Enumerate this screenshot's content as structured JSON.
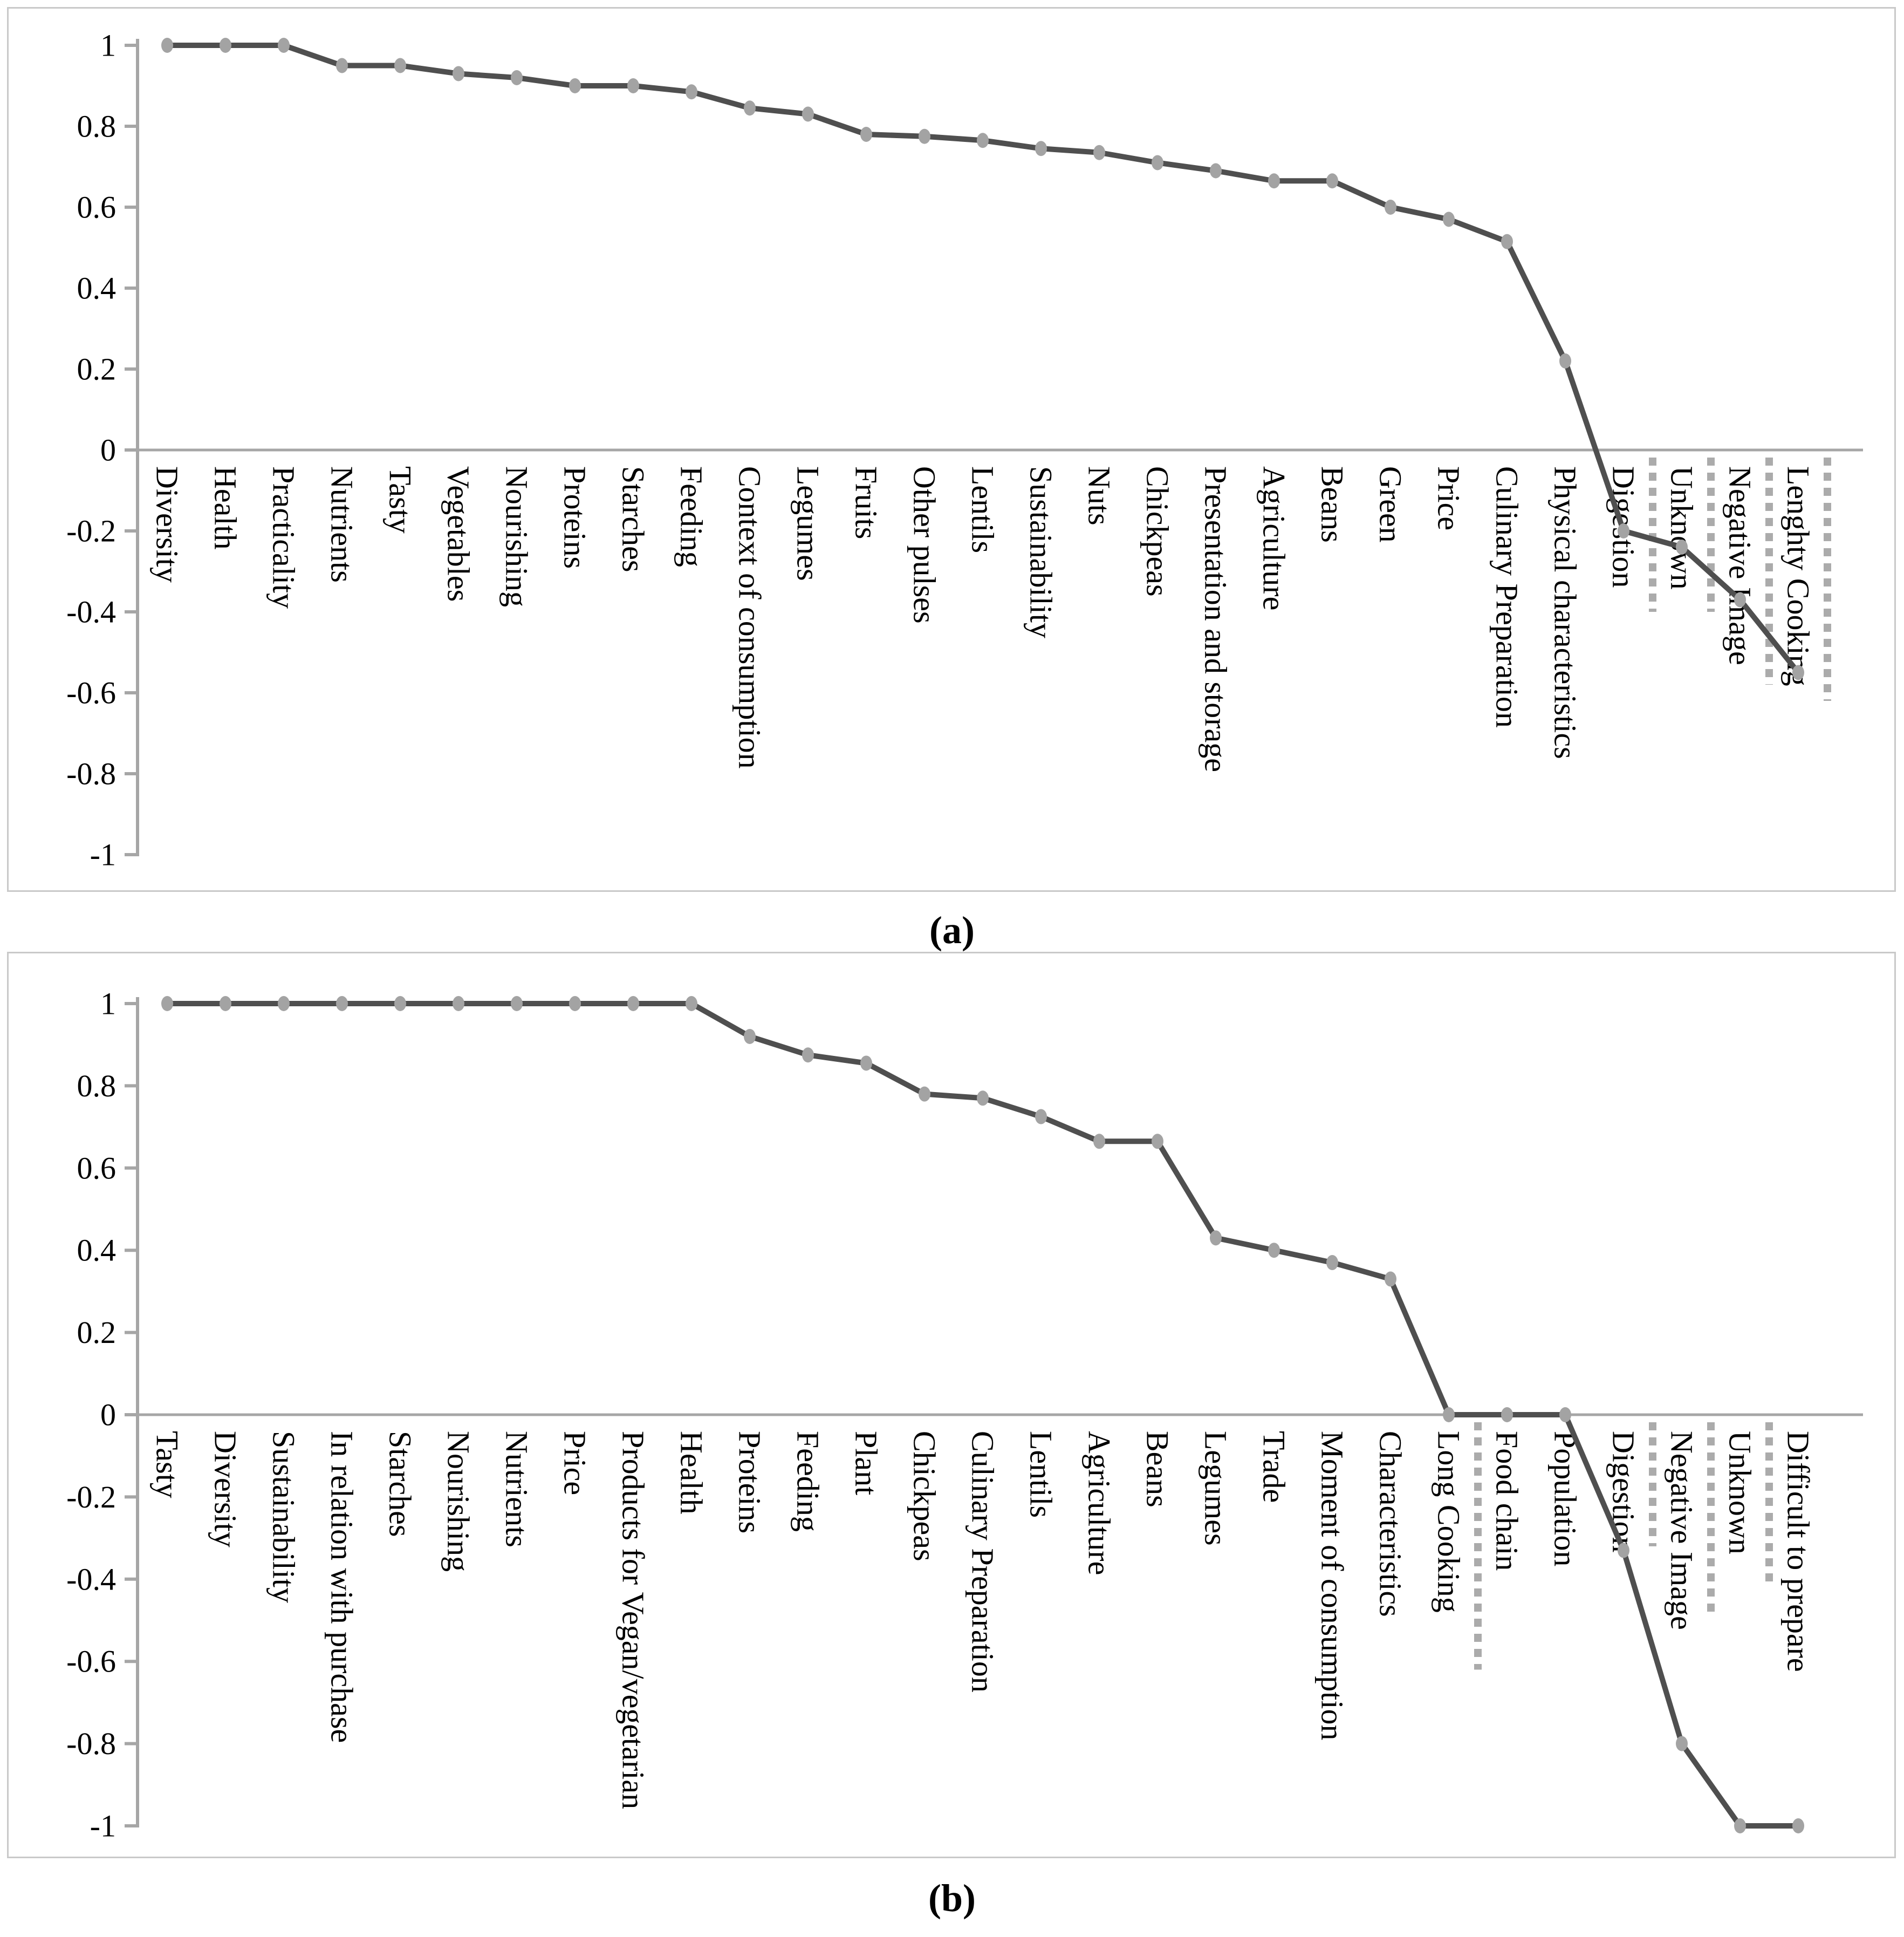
{
  "figure": {
    "panels": [
      {
        "caption": "(a)"
      },
      {
        "caption": "(b)"
      }
    ]
  },
  "colors": {
    "line": "#4f4f4f",
    "marker": "#a3a3a3",
    "axis": "#a6a6a6",
    "zero_line": "#a6a6a6",
    "separator": "#ababab",
    "text": "#000000",
    "panel_border": "#c9c9c9"
  },
  "chart_data": [
    {
      "type": "line",
      "title": "",
      "xlabel": "",
      "ylabel": "",
      "ylim": [
        -1,
        1
      ],
      "grid": false,
      "legend": "none",
      "ytick_labels": [
        "1",
        "0.8",
        "0.6",
        "0.4",
        "0.2",
        "0",
        "-0.2",
        "-0.4",
        "-0.6",
        "-0.8",
        "-1"
      ],
      "ytick_values": [
        1,
        0.8,
        0.6,
        0.4,
        0.2,
        0,
        -0.2,
        -0.4,
        -0.6,
        -0.8,
        -1
      ],
      "categories": [
        "Diversity",
        "Health",
        "Practicality",
        "Nutrients",
        "Tasty",
        "Vegetables",
        "Nourishing",
        "Proteins",
        "Starches",
        "Feeding",
        "Context of consumption",
        "Legumes",
        "Fruits",
        "Other pulses",
        "Lentils",
        "Sustainability",
        "Nuts",
        "Chickpeas",
        "Presentation and storage",
        "Agriculture",
        "Beans",
        "Green",
        "Price",
        "Culinary Preparation",
        "Physical characteristics",
        "Digestion",
        "Unknown",
        "Negative Image",
        "Lenghty Cooking"
      ],
      "values": [
        1,
        1,
        1,
        0.95,
        0.95,
        0.93,
        0.92,
        0.9,
        0.9,
        0.885,
        0.845,
        0.83,
        0.78,
        0.775,
        0.765,
        0.745,
        0.735,
        0.71,
        0.69,
        0.665,
        0.665,
        0.6,
        0.57,
        0.515,
        0.22,
        -0.2,
        -0.24,
        -0.37,
        -0.55
      ],
      "separators": [
        {
          "after_label": "Digestion",
          "after_index": 25,
          "to": -0.4
        },
        {
          "after_label": "Unknown",
          "after_index": 26,
          "to": -0.4
        },
        {
          "after_label": "Negative Image",
          "after_index": 27,
          "to": -0.58
        },
        {
          "after_label": "Lenghty Cooking",
          "after_index": 28,
          "to": -0.62
        }
      ]
    },
    {
      "type": "line",
      "title": "",
      "xlabel": "",
      "ylabel": "",
      "ylim": [
        -1,
        1
      ],
      "grid": false,
      "legend": "none",
      "ytick_labels": [
        "1",
        "0.8",
        "0.6",
        "0.4",
        "0.2",
        "0",
        "-0.2",
        "-0.4",
        "-0.6",
        "-0.8",
        "-1"
      ],
      "ytick_values": [
        1,
        0.8,
        0.6,
        0.4,
        0.2,
        0,
        -0.2,
        -0.4,
        -0.6,
        -0.8,
        -1
      ],
      "categories": [
        "Tasty",
        "Diversity",
        "Sustainability",
        "In relation with purchase",
        "Starches",
        "Nourishing",
        "Nutrients",
        "Price",
        "Products for Vegan/vegetarian",
        "Health",
        "Proteins",
        "Feeding",
        "Plant",
        "Chickpeas",
        "Culinary Preparation",
        "Lentils",
        "Agriculture",
        "Beans",
        "Legumes",
        "Trade",
        "Moment of consumption",
        "Characteristics",
        "Long Cooking",
        "Food chain",
        "Population",
        "Digestion",
        "Negative Image",
        "Unknown",
        "Difficult to prepare"
      ],
      "values": [
        1,
        1,
        1,
        1,
        1,
        1,
        1,
        1,
        1,
        1,
        0.92,
        0.875,
        0.855,
        0.78,
        0.77,
        0.725,
        0.665,
        0.665,
        0.43,
        0.4,
        0.37,
        0.33,
        0,
        0,
        0,
        -0.33,
        -0.8,
        -1,
        -1
      ],
      "separators": [
        {
          "after_label": "Long Cooking",
          "after_index": 22,
          "to": -0.62
        },
        {
          "after_label": "Digestion",
          "after_index": 25,
          "to": -0.32
        },
        {
          "after_label": "Negative Image",
          "after_index": 26,
          "to": -0.49
        },
        {
          "after_label": "Unknown",
          "after_index": 27,
          "to": -0.42
        }
      ]
    }
  ]
}
